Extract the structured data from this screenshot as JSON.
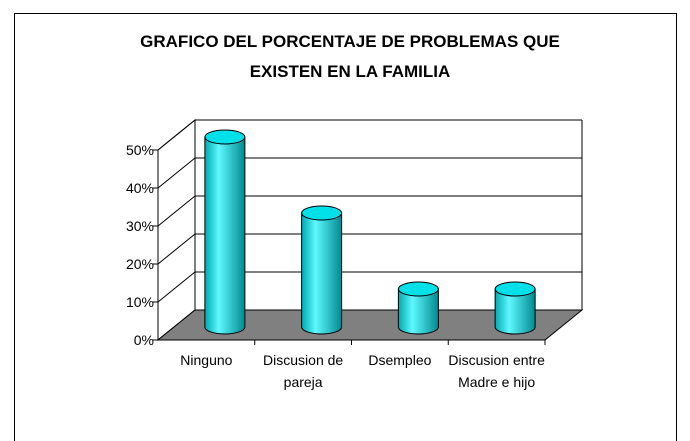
{
  "chart_data": {
    "type": "bar",
    "title": "GRAFICO DEL PORCENTAJE DE PROBLEMAS QUE EXISTEN EN LA FAMILIA",
    "categories": [
      "Ninguno",
      "Discusion de pareja",
      "Dsempleo",
      "Discusion entre Madre e hijo"
    ],
    "values": [
      50,
      30,
      10,
      10
    ],
    "color": "#00e0e8",
    "ylim": [
      0,
      50
    ],
    "yticks": [
      {
        "value": 0,
        "label": "0%"
      },
      {
        "value": 10,
        "label": "10%"
      },
      {
        "value": 20,
        "label": "20%"
      },
      {
        "value": 30,
        "label": "30%"
      },
      {
        "value": 40,
        "label": "40%"
      },
      {
        "value": 50,
        "label": "50%"
      }
    ],
    "grid": true
  }
}
